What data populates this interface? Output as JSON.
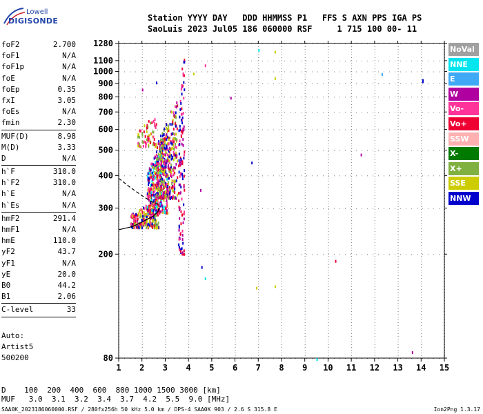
{
  "header": {
    "line1": "Station YYYY DAY   DDD HHMMSS P1   FFS S AXN PPS IGA PS",
    "line2": "SaoLuis 2023 Jul05 186 060000 RSF     1 715 100 00- 11"
  },
  "logo": {
    "line1": "Lowell",
    "line2": "DIGISONDE"
  },
  "params": [
    {
      "k": "foF2",
      "v": "2.700"
    },
    {
      "k": "foF1",
      "v": "N/A"
    },
    {
      "k": "foF1p",
      "v": "N/A"
    },
    {
      "k": "foE",
      "v": "N/A"
    },
    {
      "k": "foEp",
      "v": "0.35"
    },
    {
      "k": "fxI",
      "v": "3.05"
    },
    {
      "k": "foEs",
      "v": "N/A"
    },
    {
      "k": "fmin",
      "v": "2.30"
    },
    {
      "sep": true
    },
    {
      "k": "MUF(D)",
      "v": "8.98"
    },
    {
      "k": "M(D)",
      "v": "3.33"
    },
    {
      "k": "D",
      "v": "N/A"
    },
    {
      "sep": true
    },
    {
      "k": "h`F",
      "v": "310.0"
    },
    {
      "k": "h`F2",
      "v": "310.0"
    },
    {
      "k": "h`E",
      "v": "N/A"
    },
    {
      "k": "h`Es",
      "v": "N/A"
    },
    {
      "sep": true
    },
    {
      "k": "hmF2",
      "v": "291.4"
    },
    {
      "k": "hmF1",
      "v": "N/A"
    },
    {
      "k": "hmE",
      "v": "110.0"
    },
    {
      "k": "yF2",
      "v": "43.7"
    },
    {
      "k": "yF1",
      "v": "N/A"
    },
    {
      "k": "yE",
      "v": "20.0"
    },
    {
      "k": "B0",
      "v": "44.2"
    },
    {
      "k": "B1",
      "v": "2.06"
    },
    {
      "sep": true
    },
    {
      "k": "C-level",
      "v": "33"
    },
    {
      "sep": true
    }
  ],
  "auto": {
    "line1": "Auto:",
    "line2": "Artist5",
    "line3": "500200"
  },
  "legend": [
    {
      "label": "NoVal",
      "color": "#a0a0a0"
    },
    {
      "label": "NNE",
      "color": "#00e5ee"
    },
    {
      "label": "E",
      "color": "#3fa9f5"
    },
    {
      "label": "W",
      "color": "#b000a0"
    },
    {
      "label": "Vo-",
      "color": "#ff3399"
    },
    {
      "label": "Vo+",
      "color": "#ee0033"
    },
    {
      "label": "SSW",
      "color": "#ffb0b0"
    },
    {
      "label": "X-",
      "color": "#007a00"
    },
    {
      "label": "X+",
      "color": "#80b040"
    },
    {
      "label": "SSE",
      "color": "#cccc00"
    },
    {
      "label": "NNW",
      "color": "#0000cc"
    }
  ],
  "bottom": {
    "d_line": "D    100  200  400  600  800 1000 1500 3000 [km]",
    "muf_line": "MUF   3.0  3.1  3.2  3.4  3.7  4.2  5.5  9.0 [MHz]"
  },
  "footer": {
    "left": "SAA0K_2023186060000.RSF / 280fx256h 50 kHz 5.0 km / DPS-4 SAA0K 903 / 2.6 S 315.8 E",
    "right": "Ion2Png 1.3.17"
  },
  "chart_data": {
    "type": "scatter",
    "title": "",
    "xlabel": "",
    "ylabel": "",
    "x_unit": "MHz",
    "y_unit": "km",
    "xlim": [
      1,
      15
    ],
    "ylim": [
      80,
      1280
    ],
    "y_scale": "log",
    "xticks": [
      1,
      2,
      3,
      4,
      5,
      6,
      7,
      8,
      9,
      10,
      11,
      12,
      13,
      14,
      15
    ],
    "yticks": [
      80,
      200,
      300,
      400,
      500,
      600,
      700,
      800,
      900,
      1000,
      1100,
      1280
    ],
    "grid": true,
    "legend_position": "right",
    "traces": [
      {
        "name": "O-trace fit",
        "style": "dashed",
        "points": [
          [
            1.0,
            390
          ],
          [
            1.5,
            360
          ],
          [
            2.0,
            335
          ],
          [
            2.4,
            318
          ],
          [
            2.7,
            310
          ]
        ]
      },
      {
        "name": "profile",
        "style": "solid",
        "points": [
          [
            1.0,
            248
          ],
          [
            1.6,
            255
          ],
          [
            2.1,
            268
          ],
          [
            2.5,
            280
          ],
          [
            2.7,
            292
          ],
          [
            2.72,
            300
          ]
        ]
      }
    ],
    "echo_regions": [
      {
        "f": [
          1.5,
          2.7
        ],
        "h": [
          255,
          330
        ],
        "n": 260,
        "colors": [
          "Vo-",
          "Vo+",
          "NNW",
          "SSE",
          "X+"
        ]
      },
      {
        "f": [
          2.2,
          3.1
        ],
        "h": [
          290,
          600
        ],
        "n": 420,
        "colors": [
          "NNW",
          "Vo+",
          "Vo-",
          "W",
          "NNE",
          "SSE"
        ]
      },
      {
        "f": [
          2.6,
          3.5
        ],
        "h": [
          330,
          800
        ],
        "n": 380,
        "colors": [
          "NNW",
          "Vo+",
          "W",
          "Vo-",
          "SSE",
          "X+"
        ]
      },
      {
        "f": [
          1.8,
          2.6
        ],
        "h": [
          520,
          700
        ],
        "n": 70,
        "colors": [
          "SSE",
          "Vo-",
          "Vo+",
          "X+"
        ]
      },
      {
        "f": [
          3.55,
          3.8
        ],
        "h": [
          200,
          1280
        ],
        "n": 120,
        "colors": [
          "W",
          "Vo+",
          "Vo-",
          "NNW"
        ]
      }
    ],
    "isolated_points": [
      {
        "f": 7.0,
        "h": 1220,
        "c": "NNE"
      },
      {
        "f": 7.7,
        "h": 1200,
        "c": "SSE"
      },
      {
        "f": 9.5,
        "h": 80,
        "c": "NNE"
      },
      {
        "f": 12.3,
        "h": 985,
        "c": "E"
      },
      {
        "f": 14.05,
        "h": 935,
        "c": "NNW"
      },
      {
        "f": 14.05,
        "h": 925,
        "c": "NNW"
      },
      {
        "f": 11.4,
        "h": 485,
        "c": "W"
      },
      {
        "f": 10.3,
        "h": 190,
        "c": "Vo+"
      },
      {
        "f": 6.7,
        "h": 452,
        "c": "NNW"
      },
      {
        "f": 5.8,
        "h": 800,
        "c": "W"
      },
      {
        "f": 7.7,
        "h": 950,
        "c": "SSE"
      },
      {
        "f": 4.7,
        "h": 1065,
        "c": "Vo-"
      },
      {
        "f": 4.2,
        "h": 990,
        "c": "SSE"
      },
      {
        "f": 4.5,
        "h": 355,
        "c": "W"
      },
      {
        "f": 4.55,
        "h": 180,
        "c": "NNW"
      },
      {
        "f": 4.7,
        "h": 163,
        "c": "NNE"
      },
      {
        "f": 6.9,
        "h": 150,
        "c": "SSE"
      },
      {
        "f": 7.7,
        "h": 152,
        "c": "SSE"
      },
      {
        "f": 13.6,
        "h": 85,
        "c": "W"
      },
      {
        "f": 2.6,
        "h": 915,
        "c": "NNW"
      },
      {
        "f": 2.0,
        "h": 860,
        "c": "W"
      }
    ]
  }
}
